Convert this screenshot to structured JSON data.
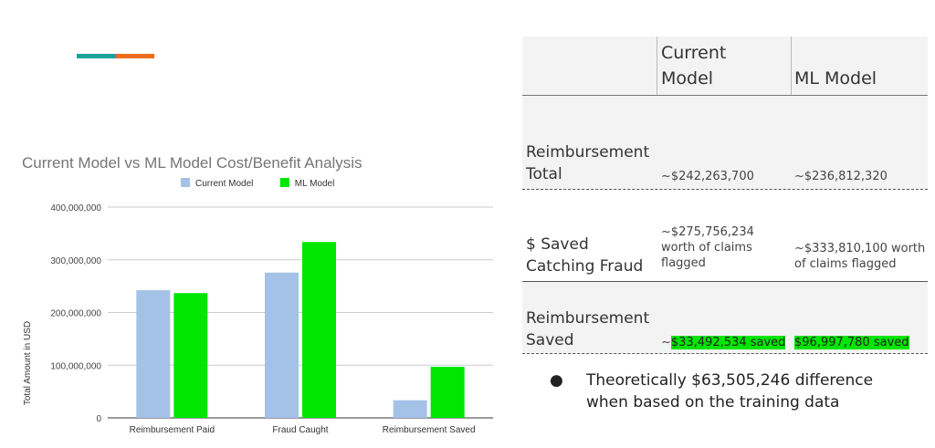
{
  "chart_data": {
    "type": "bar",
    "title": "Current Model vs ML Model Cost/Benefit Analysis",
    "xlabel": "",
    "ylabel": "Total Amount in USD",
    "categories": [
      "Reimbursement Paid",
      "Fraud Caught",
      "Reimbursement Saved"
    ],
    "series": [
      {
        "name": "Current Model",
        "color": "#a4c2e8",
        "values": [
          242263700,
          275756234,
          33492534
        ]
      },
      {
        "name": "ML Model",
        "color": "#00e600",
        "values": [
          236812320,
          333810100,
          96997780
        ]
      }
    ],
    "ylim": [
      0,
      400000000
    ],
    "yticks": [
      0,
      100000000,
      200000000,
      300000000,
      400000000
    ],
    "ytick_labels": [
      "0",
      "100,000,000",
      "200,000,000",
      "300,000,000",
      "400,000,000"
    ],
    "grid": true,
    "legend": "top"
  },
  "table": {
    "headers": {
      "col1_line1": "Current",
      "col1_line2": "Model",
      "col2": "ML Model"
    },
    "rows": [
      {
        "label_line1": "Reimbursement",
        "label_line2": "Total",
        "current": "~$242,263,700",
        "ml": "~$236,812,320"
      },
      {
        "label_line1": "$ Saved",
        "label_line2": "Catching Fraud",
        "current_line1": "~$275,756,234",
        "current_line2": "worth of claims",
        "current_line3": "flagged",
        "ml_line1": "~$333,810,100 worth",
        "ml_line2": "of claims flagged"
      },
      {
        "label_line1": "Reimbursement",
        "label_line2": "Saved",
        "current_prefix": "~",
        "current_hl": "$33,492,534 saved",
        "ml_hl": "$96,997,780 saved"
      }
    ]
  },
  "bullet": {
    "symbol": "●",
    "text": "Theoretically $63,505,246 difference when based on the training data"
  },
  "colors": {
    "accent_teal": "#1aa39a",
    "accent_orange": "#ef6c1a",
    "highlight": "#00e600"
  }
}
